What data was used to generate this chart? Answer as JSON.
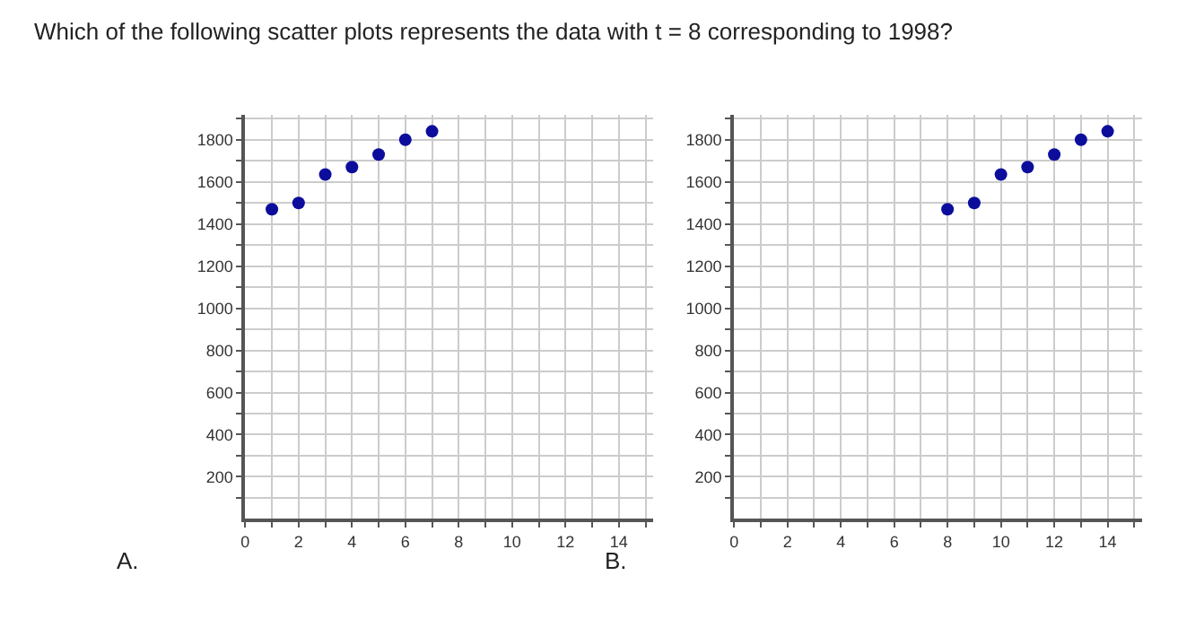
{
  "chart_data": [
    {
      "type": "scatter",
      "title": "Which of the following scatter plots represents the data with t = 8 corresponding to 1998?",
      "annotations": [
        "A."
      ],
      "x": [
        1,
        2,
        3,
        4,
        5,
        6,
        7
      ],
      "values": [
        1470,
        1500,
        1635,
        1670,
        1730,
        1800,
        1840
      ],
      "color": "#0d0d9c",
      "marker": "circle",
      "xlim": [
        0,
        15.3
      ],
      "ylim": [
        0,
        1920
      ],
      "xticks": [
        0,
        {
          "value": 1,
          "label": null
        },
        2,
        {
          "value": 3,
          "label": null
        },
        4,
        {
          "value": 5,
          "label": null
        },
        6,
        {
          "value": 7,
          "label": null
        },
        8,
        {
          "value": 9,
          "label": null
        },
        10,
        {
          "value": 11,
          "label": null
        },
        12,
        {
          "value": 13,
          "label": null
        },
        14,
        {
          "value": 15,
          "label": null
        }
      ],
      "yticks": [
        {
          "value": 100,
          "label": null
        },
        200,
        {
          "value": 300,
          "label": null
        },
        400,
        {
          "value": 500,
          "label": null
        },
        600,
        {
          "value": 700,
          "label": null
        },
        800,
        {
          "value": 900,
          "label": null
        },
        1000,
        {
          "value": 1100,
          "label": null
        },
        1200,
        {
          "value": 1300,
          "label": null
        },
        1400,
        {
          "value": 1500,
          "label": null
        },
        1600,
        {
          "value": 1700,
          "label": null
        },
        1800,
        {
          "value": 1900,
          "label": null
        }
      ],
      "grid": true
    },
    {
      "type": "scatter",
      "annotations": [
        "B."
      ],
      "x": [
        8,
        9,
        10,
        11,
        12,
        13,
        14
      ],
      "values": [
        1470,
        1500,
        1635,
        1670,
        1730,
        1800,
        1840
      ],
      "color": "#0d0d9c",
      "marker": "circle",
      "xlim": [
        0,
        15.3
      ],
      "ylim": [
        0,
        1920
      ],
      "xticks": [
        0,
        {
          "value": 1,
          "label": null
        },
        2,
        {
          "value": 3,
          "label": null
        },
        4,
        {
          "value": 5,
          "label": null
        },
        6,
        {
          "value": 7,
          "label": null
        },
        8,
        {
          "value": 9,
          "label": null
        },
        10,
        {
          "value": 11,
          "label": null
        },
        12,
        {
          "value": 13,
          "label": null
        },
        14,
        {
          "value": 15,
          "label": null
        }
      ],
      "yticks": [
        {
          "value": 100,
          "label": null
        },
        200,
        {
          "value": 300,
          "label": null
        },
        400,
        {
          "value": 500,
          "label": null
        },
        600,
        {
          "value": 700,
          "label": null
        },
        800,
        {
          "value": 900,
          "label": null
        },
        1000,
        {
          "value": 1100,
          "label": null
        },
        1200,
        {
          "value": 1300,
          "label": null
        },
        1400,
        {
          "value": 1500,
          "label": null
        },
        1600,
        {
          "value": 1700,
          "label": null
        },
        1800,
        {
          "value": 1900,
          "label": null
        }
      ],
      "grid": true
    }
  ]
}
